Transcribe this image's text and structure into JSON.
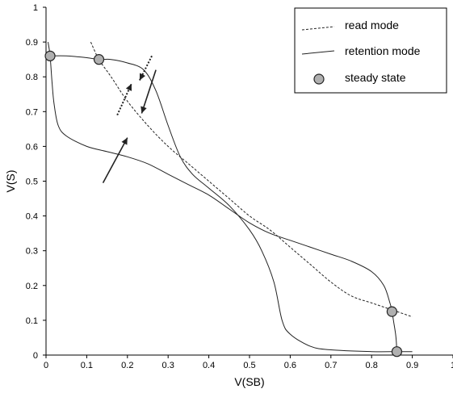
{
  "chart_data": {
    "type": "line",
    "xlabel": "V(SB)",
    "ylabel": "V(S)",
    "xlim": [
      0,
      1
    ],
    "ylim": [
      0,
      1
    ],
    "x_ticks": [
      0,
      0.1,
      0.2,
      0.3,
      0.4,
      0.5,
      0.6,
      0.7,
      0.8,
      0.9,
      1
    ],
    "y_ticks": [
      0,
      0.1,
      0.2,
      0.3,
      0.4,
      0.5,
      0.6,
      0.7,
      0.8,
      0.9,
      1
    ],
    "x_tick_labels": [
      "0",
      "0.1",
      "0.2",
      "0.3",
      "0.4",
      "0.5",
      "0.6",
      "0.7",
      "0.8",
      "0.9",
      "1"
    ],
    "y_tick_labels": [
      "0",
      "0.1",
      "0.2",
      "0.3",
      "0.4",
      "0.5",
      "0.6",
      "0.7",
      "0.8",
      "0.9",
      "1"
    ],
    "legend_position": "top-right",
    "grid": false,
    "series": [
      {
        "name": "read mode",
        "style": "dashed",
        "points": [
          [
            0.11,
            0.9
          ],
          [
            0.13,
            0.85
          ],
          [
            0.16,
            0.8
          ],
          [
            0.2,
            0.73
          ],
          [
            0.25,
            0.66
          ],
          [
            0.3,
            0.6
          ],
          [
            0.35,
            0.55
          ],
          [
            0.4,
            0.5
          ],
          [
            0.45,
            0.45
          ],
          [
            0.5,
            0.4
          ],
          [
            0.55,
            0.36
          ],
          [
            0.6,
            0.31
          ],
          [
            0.65,
            0.26
          ],
          [
            0.7,
            0.21
          ],
          [
            0.75,
            0.17
          ],
          [
            0.8,
            0.15
          ],
          [
            0.85,
            0.13
          ],
          [
            0.9,
            0.11
          ]
        ]
      },
      {
        "name": "retention mode",
        "style": "solid",
        "points": [
          [
            0.01,
            0.86
          ],
          [
            0.05,
            0.86
          ],
          [
            0.1,
            0.855
          ],
          [
            0.13,
            0.85
          ],
          [
            0.16,
            0.85
          ],
          [
            0.2,
            0.84
          ],
          [
            0.24,
            0.82
          ],
          [
            0.27,
            0.76
          ],
          [
            0.3,
            0.66
          ],
          [
            0.33,
            0.57
          ],
          [
            0.36,
            0.52
          ],
          [
            0.4,
            0.48
          ],
          [
            0.45,
            0.43
          ],
          [
            0.5,
            0.36
          ],
          [
            0.53,
            0.3
          ],
          [
            0.56,
            0.21
          ],
          [
            0.58,
            0.1
          ],
          [
            0.6,
            0.06
          ],
          [
            0.65,
            0.025
          ],
          [
            0.7,
            0.015
          ],
          [
            0.8,
            0.01
          ],
          [
            0.86,
            0.01
          ],
          [
            0.9,
            0.01
          ]
        ]
      },
      {
        "name": "",
        "style": "solid",
        "points": [
          [
            0.005,
            0.9
          ],
          [
            0.01,
            0.86
          ],
          [
            0.015,
            0.78
          ],
          [
            0.02,
            0.72
          ],
          [
            0.03,
            0.66
          ],
          [
            0.05,
            0.63
          ],
          [
            0.1,
            0.6
          ],
          [
            0.15,
            0.585
          ],
          [
            0.2,
            0.57
          ],
          [
            0.25,
            0.55
          ],
          [
            0.3,
            0.52
          ],
          [
            0.35,
            0.49
          ],
          [
            0.4,
            0.46
          ],
          [
            0.45,
            0.42
          ],
          [
            0.5,
            0.38
          ],
          [
            0.55,
            0.35
          ],
          [
            0.6,
            0.33
          ],
          [
            0.65,
            0.31
          ],
          [
            0.7,
            0.29
          ],
          [
            0.75,
            0.27
          ],
          [
            0.8,
            0.24
          ],
          [
            0.83,
            0.2
          ],
          [
            0.845,
            0.15
          ],
          [
            0.85,
            0.125
          ],
          [
            0.855,
            0.09
          ],
          [
            0.86,
            0.05
          ],
          [
            0.862,
            0.01
          ]
        ]
      }
    ],
    "steady_state_label": "steady state",
    "steady_states": [
      [
        0.01,
        0.86
      ],
      [
        0.13,
        0.85
      ],
      [
        0.85,
        0.125
      ],
      [
        0.862,
        0.01
      ]
    ],
    "arrows": [
      {
        "style": "dotted",
        "from": [
          0.175,
          0.69
        ],
        "to": [
          0.21,
          0.78
        ]
      },
      {
        "style": "dotted",
        "from": [
          0.26,
          0.86
        ],
        "to": [
          0.23,
          0.79
        ]
      },
      {
        "style": "solid",
        "from": [
          0.27,
          0.82
        ],
        "to": [
          0.235,
          0.695
        ]
      },
      {
        "style": "solid",
        "from": [
          0.14,
          0.495
        ],
        "to": [
          0.2,
          0.625
        ]
      }
    ],
    "colors": {
      "line": "#222222",
      "marker_fill": "#b0b0b0",
      "marker_stroke": "#222222",
      "axis": "#000000"
    }
  }
}
